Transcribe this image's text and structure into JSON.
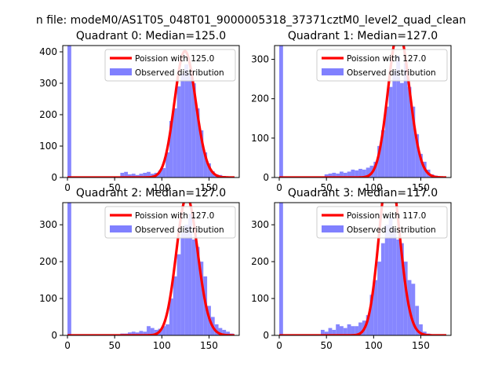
{
  "figure": {
    "suptitle": "n file: modeM0/AS1T05_048T01_9000005318_37371cztM0_level2_quad_clean"
  },
  "colors": {
    "hist": "#8080ff",
    "poisson": "#ff0000",
    "axes": "#000000",
    "background": "#ffffff"
  },
  "chart_data": [
    {
      "type": "bar",
      "title": "Quadrant 0: Median=125.0",
      "median": 125.0,
      "xlim": [
        -5,
        182
      ],
      "ylim": [
        0,
        420
      ],
      "xticks": [
        0,
        50,
        100,
        150
      ],
      "yticks": [
        0,
        100,
        200,
        300,
        400
      ],
      "legend": {
        "location": "upper-right",
        "entries": [
          "Poission with 125.0",
          "Observed distribution"
        ]
      },
      "bin_width": 4,
      "histogram": {
        "bins": [
          [
            0,
            420
          ],
          [
            56,
            15
          ],
          [
            60,
            18
          ],
          [
            64,
            10
          ],
          [
            68,
            12
          ],
          [
            72,
            8
          ],
          [
            76,
            12
          ],
          [
            80,
            15
          ],
          [
            84,
            18
          ],
          [
            88,
            12
          ],
          [
            92,
            15
          ],
          [
            96,
            22
          ],
          [
            100,
            30
          ],
          [
            104,
            80
          ],
          [
            108,
            180
          ],
          [
            112,
            220
          ],
          [
            116,
            290
          ],
          [
            120,
            330
          ],
          [
            124,
            360
          ],
          [
            128,
            330
          ],
          [
            132,
            300
          ],
          [
            136,
            220
          ],
          [
            140,
            150
          ],
          [
            144,
            80
          ],
          [
            148,
            45
          ],
          [
            152,
            20
          ],
          [
            156,
            10
          ],
          [
            160,
            8
          ],
          [
            164,
            5
          ],
          [
            168,
            3
          ]
        ]
      }
    },
    {
      "type": "bar",
      "title": "Quadrant 1: Median=127.0",
      "median": 127.0,
      "xlim": [
        -5,
        182
      ],
      "ylim": [
        0,
        335
      ],
      "xticks": [
        0,
        50,
        100,
        150
      ],
      "yticks": [
        0,
        100,
        200,
        300
      ],
      "legend": {
        "location": "upper-right",
        "entries": [
          "Poission with 127.0",
          "Observed distribution"
        ]
      },
      "bin_width": 4,
      "histogram": {
        "bins": [
          [
            0,
            335
          ],
          [
            48,
            8
          ],
          [
            52,
            10
          ],
          [
            56,
            12
          ],
          [
            60,
            10
          ],
          [
            64,
            15
          ],
          [
            68,
            12
          ],
          [
            72,
            15
          ],
          [
            76,
            20
          ],
          [
            80,
            18
          ],
          [
            84,
            22
          ],
          [
            88,
            20
          ],
          [
            92,
            25
          ],
          [
            96,
            30
          ],
          [
            100,
            40
          ],
          [
            104,
            80
          ],
          [
            108,
            120
          ],
          [
            112,
            180
          ],
          [
            116,
            230
          ],
          [
            120,
            270
          ],
          [
            124,
            310
          ],
          [
            128,
            240
          ],
          [
            132,
            290
          ],
          [
            136,
            230
          ],
          [
            140,
            180
          ],
          [
            144,
            110
          ],
          [
            148,
            60
          ],
          [
            152,
            40
          ],
          [
            156,
            20
          ],
          [
            160,
            8
          ],
          [
            164,
            5
          ]
        ]
      }
    },
    {
      "type": "bar",
      "title": "Quadrant 2: Median=127.0",
      "median": 127.0,
      "xlim": [
        -5,
        182
      ],
      "ylim": [
        0,
        360
      ],
      "xticks": [
        0,
        50,
        100,
        150
      ],
      "yticks": [
        0,
        100,
        200,
        300
      ],
      "legend": {
        "location": "upper-right",
        "entries": [
          "Poission with 127.0",
          "Observed distribution"
        ]
      },
      "bin_width": 4,
      "histogram": {
        "bins": [
          [
            0,
            360
          ],
          [
            56,
            5
          ],
          [
            60,
            5
          ],
          [
            64,
            8
          ],
          [
            68,
            10
          ],
          [
            72,
            8
          ],
          [
            76,
            12
          ],
          [
            80,
            10
          ],
          [
            84,
            25
          ],
          [
            88,
            20
          ],
          [
            92,
            15
          ],
          [
            96,
            18
          ],
          [
            100,
            25
          ],
          [
            104,
            30
          ],
          [
            108,
            100
          ],
          [
            112,
            160
          ],
          [
            116,
            220
          ],
          [
            120,
            280
          ],
          [
            124,
            300
          ],
          [
            128,
            330
          ],
          [
            132,
            260
          ],
          [
            136,
            240
          ],
          [
            140,
            200
          ],
          [
            144,
            160
          ],
          [
            148,
            80
          ],
          [
            152,
            50
          ],
          [
            156,
            30
          ],
          [
            160,
            20
          ],
          [
            164,
            15
          ],
          [
            168,
            10
          ],
          [
            172,
            5
          ]
        ]
      }
    },
    {
      "type": "bar",
      "title": "Quadrant 3: Median=117.0",
      "median": 117.0,
      "xlim": [
        -5,
        182
      ],
      "ylim": [
        0,
        360
      ],
      "xticks": [
        0,
        50,
        100,
        150
      ],
      "yticks": [
        0,
        100,
        200,
        300
      ],
      "legend": {
        "location": "upper-right",
        "entries": [
          "Poission with 117.0",
          "Observed distribution"
        ]
      },
      "bin_width": 4,
      "histogram": {
        "bins": [
          [
            0,
            360
          ],
          [
            44,
            15
          ],
          [
            48,
            10
          ],
          [
            52,
            20
          ],
          [
            56,
            15
          ],
          [
            60,
            30
          ],
          [
            64,
            25
          ],
          [
            68,
            20
          ],
          [
            72,
            30
          ],
          [
            76,
            25
          ],
          [
            80,
            25
          ],
          [
            84,
            35
          ],
          [
            88,
            40
          ],
          [
            92,
            55
          ],
          [
            96,
            110
          ],
          [
            100,
            150
          ],
          [
            104,
            200
          ],
          [
            108,
            250
          ],
          [
            112,
            300
          ],
          [
            116,
            320
          ],
          [
            120,
            290
          ],
          [
            124,
            260
          ],
          [
            128,
            250
          ],
          [
            132,
            200
          ],
          [
            136,
            150
          ],
          [
            140,
            140
          ],
          [
            144,
            80
          ],
          [
            148,
            30
          ],
          [
            152,
            10
          ],
          [
            156,
            5
          ]
        ]
      }
    }
  ]
}
